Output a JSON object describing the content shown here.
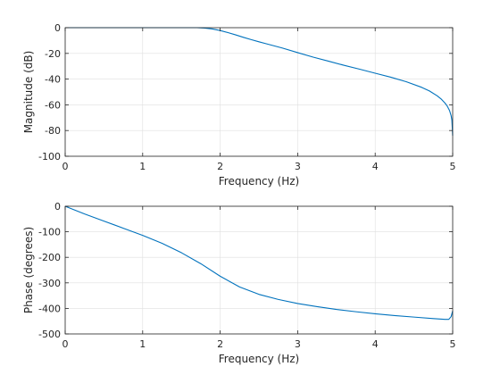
{
  "chart_data": [
    {
      "type": "line",
      "xlabel": "Frequency (Hz)",
      "ylabel": "Magnitude (dB)",
      "xlim": [
        0,
        5
      ],
      "ylim": [
        -100,
        0
      ],
      "xticks": [
        "0",
        "1",
        "2",
        "3",
        "4",
        "5"
      ],
      "yticks": [
        "0",
        "-20",
        "-40",
        "-60",
        "-80",
        "-100"
      ],
      "grid": true,
      "color": "#0072bd",
      "series": [
        {
          "x": [
            0,
            0.5,
            1.0,
            1.5,
            1.7,
            1.8,
            1.9,
            2.0,
            2.1,
            2.2,
            2.3,
            2.4,
            2.5,
            2.6,
            2.8,
            3.0,
            3.2,
            3.4,
            3.6,
            3.8,
            4.0,
            4.2,
            4.4,
            4.6,
            4.7,
            4.8,
            4.85,
            4.9,
            4.93,
            4.96,
            4.98,
            4.99,
            5.0
          ],
          "y": [
            0,
            0,
            0,
            0,
            0,
            -0.3,
            -1.0,
            -2.2,
            -3.8,
            -5.6,
            -7.5,
            -9.3,
            -11.0,
            -12.6,
            -15.8,
            -19.4,
            -22.9,
            -26.1,
            -29.3,
            -32.3,
            -35.4,
            -38.5,
            -42.0,
            -46.4,
            -49.2,
            -53.0,
            -55.4,
            -58.6,
            -61.0,
            -64.5,
            -68.5,
            -72.0,
            -84.0
          ]
        }
      ]
    },
    {
      "type": "line",
      "xlabel": "Frequency (Hz)",
      "ylabel": "Phase (degrees)",
      "xlim": [
        0,
        5
      ],
      "ylim": [
        -500,
        0
      ],
      "xticks": [
        "0",
        "1",
        "2",
        "3",
        "4",
        "5"
      ],
      "yticks": [
        "0",
        "-100",
        "-200",
        "-300",
        "-400",
        "-500"
      ],
      "grid": true,
      "color": "#0072bd",
      "series": [
        {
          "x": [
            0,
            0.25,
            0.5,
            0.75,
            1.0,
            1.25,
            1.5,
            1.75,
            2.0,
            2.25,
            2.5,
            2.75,
            3.0,
            3.25,
            3.5,
            3.75,
            4.0,
            4.25,
            4.5,
            4.75,
            4.9,
            4.95,
            4.98,
            5.0
          ],
          "y": [
            0,
            -30,
            -58,
            -86,
            -114,
            -145,
            -182,
            -225,
            -274,
            -316,
            -345,
            -365,
            -381,
            -393,
            -404,
            -413,
            -421,
            -428,
            -434,
            -440,
            -443,
            -443,
            -432,
            -410
          ]
        }
      ]
    }
  ]
}
